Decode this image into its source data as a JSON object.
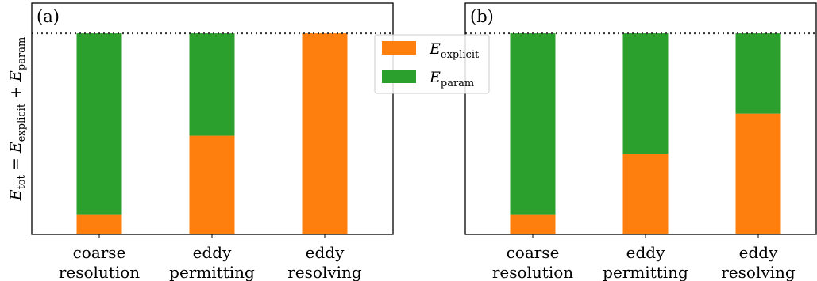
{
  "figure": {
    "ylabel": {
      "main": "E",
      "tot_sub": "tot",
      "eq": " = E",
      "explicit_sub": "explicit",
      "plus": " + E",
      "param_sub": "param"
    },
    "legend": {
      "placement": "upper-center",
      "entries": [
        {
          "label_main": "E",
          "label_sub": "explicit",
          "color": "#ff7f0e"
        },
        {
          "label_main": "E",
          "label_sub": "param",
          "color": "#2ca02c"
        }
      ]
    },
    "reference_line": {
      "style": "dotted",
      "value": 1.0
    }
  },
  "chart_data": [
    {
      "type": "bar",
      "stacked": true,
      "panel_label": "(a)",
      "categories": [
        [
          "coarse",
          "resolution"
        ],
        [
          "eddy",
          "permitting"
        ],
        [
          "eddy",
          "resolving"
        ]
      ],
      "series": [
        {
          "name": "E_explicit",
          "color": "#ff7f0e",
          "values": [
            0.1,
            0.49,
            1.0
          ]
        },
        {
          "name": "E_param",
          "color": "#2ca02c",
          "values": [
            0.9,
            0.51,
            0.0
          ]
        }
      ],
      "ylim": [
        0,
        1.15
      ],
      "grid": false
    },
    {
      "type": "bar",
      "stacked": true,
      "panel_label": "(b)",
      "categories": [
        [
          "coarse",
          "resolution"
        ],
        [
          "eddy",
          "permitting"
        ],
        [
          "eddy",
          "resolving"
        ]
      ],
      "series": [
        {
          "name": "E_explicit",
          "color": "#ff7f0e",
          "values": [
            0.1,
            0.4,
            0.6
          ]
        },
        {
          "name": "E_param",
          "color": "#2ca02c",
          "values": [
            0.9,
            0.6,
            0.4
          ]
        }
      ],
      "ylim": [
        0,
        1.15
      ],
      "grid": false
    }
  ]
}
